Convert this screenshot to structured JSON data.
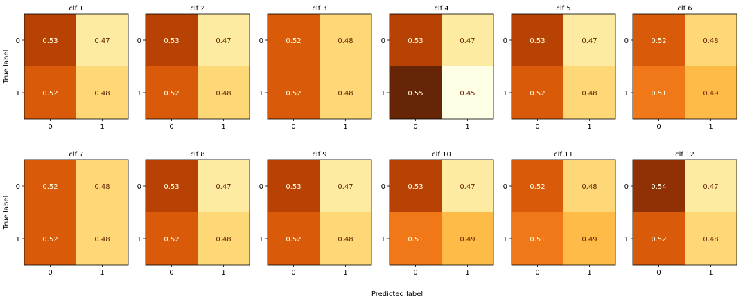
{
  "figure": {
    "xlabel": "Predicted label",
    "ylabel": "True label"
  },
  "chart_data": {
    "type": "heatmap",
    "colormap": "YlOrBr",
    "color_range": [
      0.45,
      0.55
    ],
    "cell_text_colors": {
      "dark_bg": "#ffffe5",
      "light_bg": "#662506"
    },
    "xlabel": "Predicted label",
    "ylabel": "True label",
    "x_ticklabels": [
      "0",
      "1"
    ],
    "y_ticklabels": [
      "0",
      "1"
    ],
    "panels": [
      {
        "title": "clf 1",
        "matrix": [
          [
            "0.53",
            "0.47"
          ],
          [
            "0.52",
            "0.48"
          ]
        ]
      },
      {
        "title": "clf 2",
        "matrix": [
          [
            "0.53",
            "0.47"
          ],
          [
            "0.52",
            "0.48"
          ]
        ]
      },
      {
        "title": "clf 3",
        "matrix": [
          [
            "0.52",
            "0.48"
          ],
          [
            "0.52",
            "0.48"
          ]
        ]
      },
      {
        "title": "clf 4",
        "matrix": [
          [
            "0.53",
            "0.47"
          ],
          [
            "0.55",
            "0.45"
          ]
        ]
      },
      {
        "title": "clf 5",
        "matrix": [
          [
            "0.53",
            "0.47"
          ],
          [
            "0.52",
            "0.48"
          ]
        ]
      },
      {
        "title": "clf 6",
        "matrix": [
          [
            "0.52",
            "0.48"
          ],
          [
            "0.51",
            "0.49"
          ]
        ]
      },
      {
        "title": "clf 7",
        "matrix": [
          [
            "0.52",
            "0.48"
          ],
          [
            "0.52",
            "0.48"
          ]
        ]
      },
      {
        "title": "clf 8",
        "matrix": [
          [
            "0.53",
            "0.47"
          ],
          [
            "0.52",
            "0.48"
          ]
        ]
      },
      {
        "title": "clf 9",
        "matrix": [
          [
            "0.53",
            "0.47"
          ],
          [
            "0.52",
            "0.48"
          ]
        ]
      },
      {
        "title": "clf 10",
        "matrix": [
          [
            "0.53",
            "0.47"
          ],
          [
            "0.51",
            "0.49"
          ]
        ]
      },
      {
        "title": "clf 11",
        "matrix": [
          [
            "0.52",
            "0.48"
          ],
          [
            "0.51",
            "0.49"
          ]
        ]
      },
      {
        "title": "clf 12",
        "matrix": [
          [
            "0.54",
            "0.47"
          ],
          [
            "0.52",
            "0.48"
          ]
        ]
      }
    ]
  }
}
